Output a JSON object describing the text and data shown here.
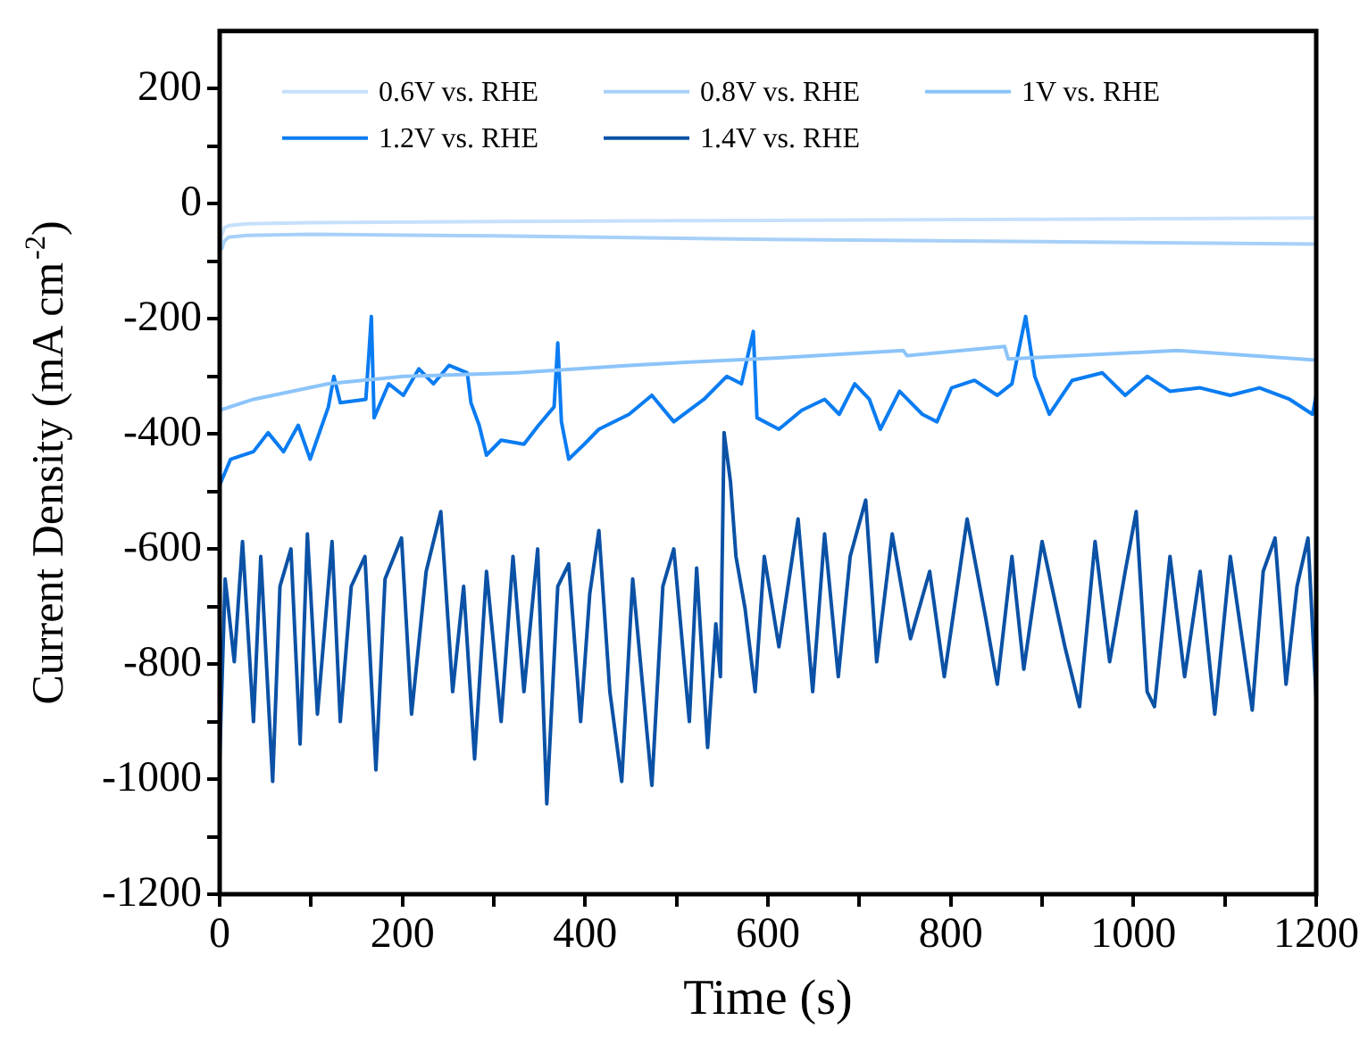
{
  "chart_data": {
    "type": "line",
    "xlabel": "Time (s)",
    "ylabel": "Current Density (mA cm$^{-2}$)",
    "xlim": [
      0,
      1200
    ],
    "xticks": [
      0,
      {
        "value": 100,
        "label": null
      },
      200,
      {
        "value": 300,
        "label": null
      },
      400,
      {
        "value": 500,
        "label": null
      },
      600,
      {
        "value": 700,
        "label": null
      },
      800,
      {
        "value": 900,
        "label": null
      },
      1000,
      {
        "value": 1100,
        "label": null
      },
      1200
    ],
    "ylim": [
      -1200,
      300
    ],
    "yticks": [
      -1200,
      {
        "value": -1100,
        "label": null
      },
      -1000,
      {
        "value": -900,
        "label": null
      },
      -800,
      {
        "value": -700,
        "label": null
      },
      -600,
      {
        "value": -500,
        "label": null
      },
      -400,
      {
        "value": -300,
        "label": null
      },
      -200,
      {
        "value": -100,
        "label": null
      },
      0,
      {
        "value": 100,
        "label": null
      },
      200
    ],
    "grid": false,
    "legend": "top",
    "marker": "none",
    "line_style": "solid",
    "series": [
      {
        "name": "0.6V vs. RHE",
        "color": "#c6e0fb",
        "x": [
          0,
          2,
          5,
          10,
          30,
          100,
          300,
          600,
          900,
          1200
        ],
        "values": [
          -80,
          -55,
          -42,
          -38,
          -35,
          -33,
          -31,
          -29,
          -27,
          -25
        ]
      },
      {
        "name": "0.8V vs. RHE",
        "color": "#a8d0f7",
        "x": [
          2,
          5,
          10,
          30,
          100,
          300,
          600,
          900,
          1200
        ],
        "values": [
          -80,
          -65,
          -58,
          -55,
          -53,
          -56,
          -62,
          -66,
          -70
        ]
      },
      {
        "name": "1V vs. RHE",
        "color": "#8cc4fa",
        "x": [
          0,
          37,
          119,
          201,
          325,
          448,
          530,
          612,
          748,
          752,
          859,
          863,
          1048,
          1200
        ],
        "values": [
          -359,
          -340,
          -313,
          -300,
          -294,
          -281,
          -274,
          -268,
          -255,
          -264,
          -248,
          -270,
          -255,
          -272
        ]
      },
      {
        "name": "1.2V vs. RHE",
        "color": "#0a7cf2",
        "x": [
          0,
          12,
          37,
          53,
          70,
          86,
          99,
          119,
          125,
          132,
          160,
          166,
          169,
          185,
          201,
          218,
          234,
          251,
          271,
          275,
          284,
          292,
          308,
          333,
          349,
          366,
          370,
          374,
          382,
          399,
          415,
          448,
          473,
          497,
          530,
          555,
          571,
          584,
          588,
          612,
          637,
          662,
          678,
          695,
          711,
          723,
          744,
          769,
          785,
          801,
          826,
          851,
          867,
          882,
          892,
          908,
          933,
          966,
          991,
          1015,
          1040,
          1073,
          1106,
          1138,
          1171,
          1196,
          1200
        ],
        "values": [
          -489,
          -444,
          -431,
          -398,
          -431,
          -385,
          -444,
          -353,
          -300,
          -346,
          -340,
          -196,
          -372,
          -313,
          -333,
          -287,
          -313,
          -281,
          -294,
          -346,
          -385,
          -437,
          -411,
          -418,
          -385,
          -353,
          -242,
          -379,
          -444,
          -418,
          -392,
          -366,
          -333,
          -379,
          -340,
          -300,
          -313,
          -222,
          -372,
          -392,
          -359,
          -340,
          -366,
          -313,
          -340,
          -392,
          -326,
          -366,
          -379,
          -320,
          -307,
          -333,
          -313,
          -196,
          -300,
          -366,
          -307,
          -294,
          -333,
          -300,
          -326,
          -320,
          -333,
          -320,
          -340,
          -366,
          -333
        ]
      },
      {
        "name": "1.4V vs. RHE",
        "color": "#0b52a6",
        "x": [
          0,
          6,
          16,
          25,
          37,
          45,
          58,
          66,
          78,
          88,
          96,
          107,
          123,
          132,
          144,
          159,
          171,
          181,
          199,
          210,
          226,
          242,
          255,
          267,
          279,
          292,
          308,
          321,
          333,
          348,
          358,
          370,
          382,
          395,
          405,
          415,
          427,
          440,
          452,
          473,
          485,
          497,
          514,
          522,
          534,
          543,
          548,
          552,
          559,
          565,
          575,
          586,
          596,
          612,
          633,
          649,
          662,
          677,
          690,
          707,
          719,
          736,
          756,
          777,
          793,
          818,
          838,
          851,
          867,
          880,
          900,
          925,
          941,
          958,
          974,
          991,
          1003,
          1015,
          1023,
          1040,
          1056,
          1073,
          1089,
          1106,
          1130,
          1142,
          1155,
          1167,
          1179,
          1191,
          1200
        ],
        "values": [
          -965,
          -652,
          -796,
          -587,
          -900,
          -613,
          -1004,
          -665,
          -600,
          -939,
          -574,
          -887,
          -587,
          -900,
          -665,
          -613,
          -984,
          -652,
          -581,
          -887,
          -639,
          -535,
          -848,
          -665,
          -965,
          -639,
          -900,
          -613,
          -848,
          -600,
          -1043,
          -665,
          -626,
          -900,
          -678,
          -568,
          -848,
          -1004,
          -652,
          -1011,
          -665,
          -600,
          -900,
          -633,
          -945,
          -730,
          -822,
          -398,
          -483,
          -613,
          -704,
          -848,
          -613,
          -770,
          -548,
          -848,
          -574,
          -822,
          -613,
          -515,
          -796,
          -574,
          -756,
          -639,
          -822,
          -548,
          -717,
          -835,
          -613,
          -809,
          -587,
          -770,
          -874,
          -587,
          -796,
          -639,
          -535,
          -848,
          -874,
          -613,
          -822,
          -639,
          -887,
          -613,
          -880,
          -639,
          -581,
          -835,
          -665,
          -581,
          -861
        ]
      }
    ]
  }
}
